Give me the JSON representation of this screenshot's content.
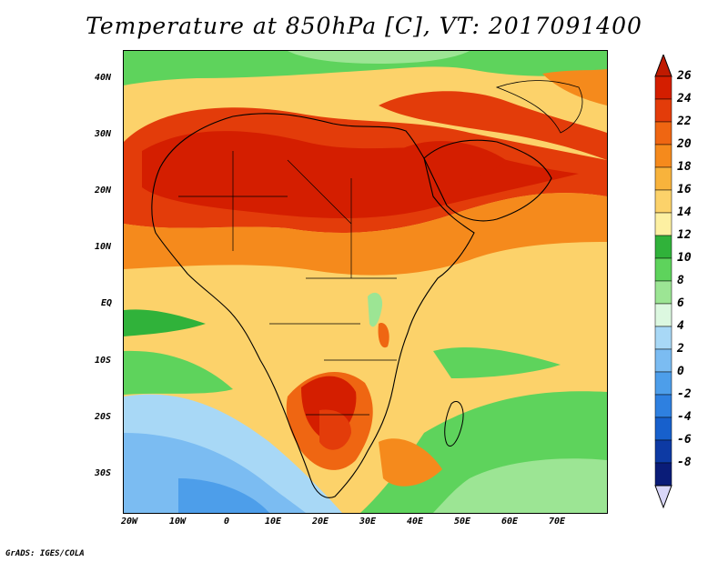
{
  "title": "Temperature at 850hPa [C], VT: 2017091400",
  "credit": "GrADS: IGES/COLA",
  "lat_labels": [
    "40N",
    "30N",
    "20N",
    "10N",
    "EQ",
    "10S",
    "20S",
    "30S"
  ],
  "lon_labels": [
    "20W",
    "10W",
    "0",
    "10E",
    "20E",
    "30E",
    "40E",
    "50E",
    "60E",
    "70E"
  ],
  "colorbar": {
    "labels": [
      "26",
      "24",
      "22",
      "20",
      "18",
      "16",
      "14",
      "12",
      "10",
      "8",
      "6",
      "4",
      "2",
      "0",
      "-2",
      "-4",
      "-6",
      "-8"
    ],
    "colors": [
      "#d41e00",
      "#e33c0a",
      "#ef6612",
      "#f58a1c",
      "#f8b33c",
      "#fcd26a",
      "#fdf0a2",
      "#30b23a",
      "#5ed35c",
      "#9ce594",
      "#dcf8e0",
      "#a8d8f6",
      "#7bbcf2",
      "#4d9eea",
      "#2e80e0",
      "#1760cc",
      "#0d3aa4",
      "#0a1c78"
    ],
    "top_arrow_color": "#c01a00",
    "bottom_arrow_color": "#d9d7f8"
  },
  "map_colors": {
    "hot": "#d41e00",
    "orange_red": "#e33c0a",
    "orange": "#ef6612",
    "orange_light": "#f58a1c",
    "yellow_orange": "#f8b33c",
    "yellow": "#fcd26a",
    "green_dark": "#30b23a",
    "green": "#5ed35c",
    "green_light": "#9ce594",
    "pale": "#dcf8e0",
    "blue_light": "#a8d8f6",
    "blue": "#7bbcf2",
    "blue_mid": "#4d9eea",
    "blue_dark": "#2e80e0"
  }
}
